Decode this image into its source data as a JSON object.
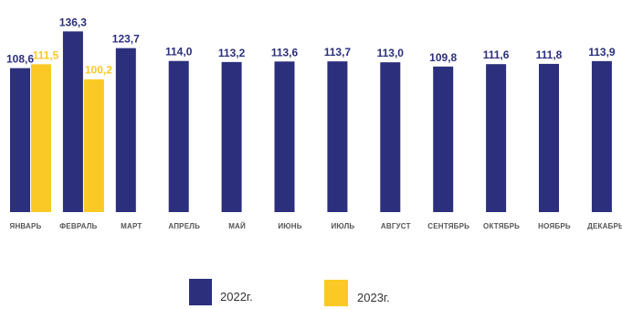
{
  "chart_data": {
    "type": "bar",
    "categories": [
      "ЯНВАРЬ",
      "ФЕВРАЛЬ",
      "МАРТ",
      "АПРЕЛЬ",
      "МАЙ",
      "ИЮНЬ",
      "ИЮЛЬ",
      "АВГУСТ",
      "СЕНТЯБРЬ",
      "ОКТЯБРЬ",
      "НОЯБРЬ",
      "ДЕКАБРЬ"
    ],
    "series": [
      {
        "name": "2022г.",
        "color": "#2b2f7c",
        "values": [
          108.6,
          136.3,
          123.7,
          114.0,
          113.2,
          113.6,
          113.7,
          113.0,
          109.8,
          111.6,
          111.8,
          113.9
        ],
        "labels": [
          "108,6",
          "136,3",
          "123,7",
          "114,0",
          "113,2",
          "113,6",
          "113,7",
          "113,0",
          "109,8",
          "111,6",
          "111,8",
          "113,9"
        ]
      },
      {
        "name": "2023г.",
        "color": "#fbc926",
        "values": [
          111.5,
          100.2,
          null,
          null,
          null,
          null,
          null,
          null,
          null,
          null,
          null,
          null
        ],
        "labels": [
          "111,5",
          "100,2",
          "",
          "",
          "",
          "",
          "",
          "",
          "",
          "",
          "",
          ""
        ]
      }
    ],
    "ylim": [
      0,
      140
    ],
    "grid": false,
    "legend_position": "bottom"
  }
}
